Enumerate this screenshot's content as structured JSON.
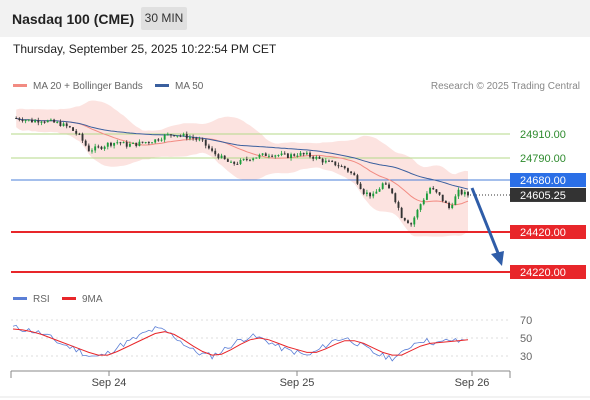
{
  "header": {
    "title": "Nasdaq 100 (CME)",
    "timeframe_label": "30 MIN",
    "datetime": "Thursday, September 25, 2025 10:22:54 PM CET"
  },
  "legend": {
    "bollinger_label": "MA 20 + Bollinger Bands",
    "ma50_label": "MA 50",
    "credit": "Research © 2025 Trading Central",
    "bollinger_color": "#f28b82",
    "ma50_color": "#3a5f9e"
  },
  "rsi_legend": {
    "rsi_label": "RSI",
    "ma9_label": "9MA",
    "rsi_color": "#5b7fd6",
    "ma9_color": "#e8262a"
  },
  "chart_data": {
    "type": "candlestick",
    "x_tick_labels": [
      "Sep 24",
      "Sep 25",
      "Sep 26"
    ],
    "y_range": [
      24120,
      25100
    ],
    "close_path": [
      24990,
      24985,
      24975,
      24980,
      24970,
      24960,
      24940,
      24900,
      24830,
      24840,
      24860,
      24870,
      24855,
      24860,
      24870,
      24880,
      24900,
      24910,
      24900,
      24890,
      24870,
      24820,
      24790,
      24760,
      24770,
      24790,
      24800,
      24810,
      24805,
      24800,
      24810,
      24805,
      24790,
      24770,
      24760,
      24740,
      24700,
      24620,
      24600,
      24660,
      24620,
      24500,
      24460,
      24560,
      24640,
      24600,
      24540,
      24620,
      24605
    ],
    "levels": [
      {
        "value": 24910,
        "label": "24910.00",
        "type": "resistance"
      },
      {
        "value": 24790,
        "label": "24790.00",
        "type": "resistance"
      },
      {
        "value": 24680,
        "label": "24680.00",
        "type": "pivot"
      },
      {
        "value": 24605.25,
        "label": "24605.25",
        "type": "last"
      },
      {
        "value": 24420,
        "label": "24420.00",
        "type": "support"
      },
      {
        "value": 24220,
        "label": "24220.00",
        "type": "support"
      }
    ],
    "rsi": {
      "ticks": [
        "70",
        "50",
        "30"
      ],
      "y_range": [
        20,
        80
      ],
      "rsi_path": [
        62,
        60,
        58,
        55,
        50,
        44,
        40,
        36,
        30,
        29,
        33,
        40,
        45,
        50,
        56,
        60,
        58,
        52,
        44,
        36,
        32,
        30,
        35,
        42,
        48,
        52,
        50,
        46,
        40,
        36,
        34,
        30,
        35,
        42,
        48,
        50,
        46,
        40,
        34,
        30,
        28,
        32,
        42,
        48,
        46,
        44,
        48,
        46,
        50
      ],
      "ma9_path": [
        60,
        59,
        57,
        54,
        50,
        46,
        42,
        38,
        34,
        31,
        31,
        35,
        40,
        45,
        50,
        55,
        57,
        54,
        48,
        41,
        35,
        31,
        32,
        37,
        43,
        48,
        50,
        48,
        44,
        40,
        37,
        34,
        34,
        38,
        43,
        47,
        47,
        44,
        39,
        34,
        31,
        31,
        36,
        41,
        44,
        45,
        46,
        47,
        48
      ]
    }
  }
}
